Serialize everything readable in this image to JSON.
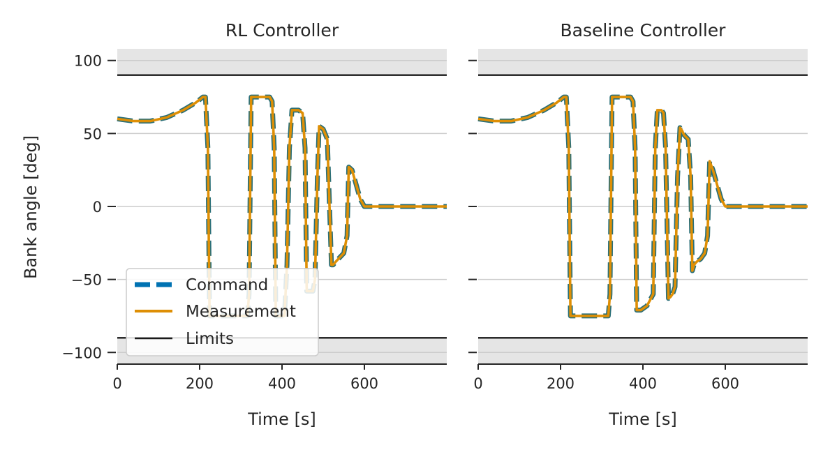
{
  "chart_data": [
    {
      "type": "line",
      "title": "RL Controller",
      "xlabel": "Time [s]",
      "ylabel": "Bank angle [deg]",
      "xlim": [
        0,
        800
      ],
      "ylim": [
        -108,
        108
      ],
      "xticks": [
        0,
        200,
        400,
        600
      ],
      "xtick_labels": [
        "0",
        "200",
        "400",
        "600"
      ],
      "yticks": [
        100,
        50,
        0,
        -50,
        -100
      ],
      "ytick_labels": [
        "100",
        "50",
        "0",
        "−50",
        "−100"
      ],
      "grid": "horizontal",
      "limits": [
        90,
        -90
      ],
      "forbidden_bands": [
        [
          90,
          108
        ],
        [
          -108,
          -90
        ]
      ],
      "legend": {
        "placement": "lower-left",
        "entries": [
          "Command",
          "Measurement",
          "Limits"
        ]
      },
      "series": [
        {
          "name": "Command",
          "style": "dashed",
          "x": [
            0,
            40,
            80,
            120,
            160,
            190,
            208,
            214,
            220,
            224,
            300,
            310,
            316,
            320,
            325,
            360,
            370,
            376,
            381,
            385,
            395,
            400,
            406,
            412,
            418,
            424,
            440,
            450,
            456,
            460,
            470,
            475,
            480,
            486,
            490,
            500,
            510,
            520,
            524,
            530,
            540,
            550,
            558,
            562,
            570,
            580,
            590,
            600,
            620,
            650,
            700,
            750,
            800
          ],
          "y": [
            60,
            58.5,
            58.5,
            61,
            66,
            71,
            75,
            75,
            40,
            -75,
            -75,
            -75,
            -75,
            -60,
            75,
            75,
            75,
            72,
            40,
            -75,
            -75,
            -75,
            -75,
            -40,
            40,
            66,
            66,
            64,
            40,
            -58,
            -58,
            -58,
            -50,
            20,
            55,
            53,
            46,
            -40,
            -40,
            -38,
            -35,
            -32,
            -20,
            27,
            25,
            15,
            5,
            0,
            0,
            0,
            0,
            0,
            0
          ]
        },
        {
          "name": "Measurement",
          "style": "solid",
          "x": [
            0,
            40,
            80,
            120,
            160,
            190,
            208,
            214,
            220,
            224,
            300,
            310,
            316,
            320,
            325,
            360,
            370,
            376,
            381,
            385,
            395,
            400,
            406,
            412,
            418,
            424,
            440,
            450,
            456,
            460,
            470,
            475,
            480,
            486,
            490,
            500,
            510,
            520,
            524,
            530,
            540,
            550,
            558,
            562,
            570,
            580,
            590,
            600,
            620,
            650,
            700,
            750,
            800
          ],
          "y": [
            60,
            58.5,
            58.5,
            61,
            66,
            71,
            75,
            75,
            40,
            -75,
            -75,
            -75,
            -75,
            -60,
            75,
            75,
            75,
            72,
            40,
            -75,
            -75,
            -75,
            -75,
            -40,
            40,
            66,
            66,
            64,
            40,
            -58,
            -58,
            -58,
            -50,
            20,
            55,
            53,
            46,
            -40,
            -40,
            -38,
            -35,
            -32,
            -20,
            27,
            25,
            15,
            5,
            0,
            0,
            0,
            0,
            0,
            0
          ]
        }
      ]
    },
    {
      "type": "line",
      "title": "Baseline Controller",
      "xlabel": "Time [s]",
      "ylabel": "",
      "xlim": [
        0,
        800
      ],
      "ylim": [
        -108,
        108
      ],
      "xticks": [
        0,
        200,
        400,
        600
      ],
      "xtick_labels": [
        "0",
        "200",
        "400",
        "600"
      ],
      "yticks": [
        100,
        50,
        0,
        -50,
        -100
      ],
      "ytick_labels": [
        "",
        "",
        "",
        "",
        ""
      ],
      "grid": "horizontal",
      "limits": [
        90,
        -90
      ],
      "forbidden_bands": [
        [
          90,
          108
        ],
        [
          -108,
          -90
        ]
      ],
      "series": [
        {
          "name": "Command",
          "style": "dashed",
          "x": [
            0,
            40,
            80,
            120,
            160,
            190,
            208,
            214,
            220,
            224,
            300,
            310,
            316,
            320,
            325,
            360,
            370,
            376,
            381,
            385,
            395,
            400,
            410,
            425,
            430,
            435,
            445,
            450,
            455,
            462,
            467,
            472,
            478,
            484,
            490,
            495,
            500,
            510,
            516,
            520,
            524,
            530,
            540,
            550,
            557,
            562,
            570,
            580,
            590,
            600,
            620,
            650,
            700,
            750,
            800
          ],
          "y": [
            60,
            58.5,
            58.5,
            61,
            66,
            71,
            75,
            75,
            40,
            -75,
            -75,
            -75,
            -75,
            -60,
            75,
            75,
            75,
            72,
            40,
            -71,
            -71,
            -70,
            -68,
            -60,
            40,
            66,
            66,
            64,
            40,
            -63,
            -62,
            -60,
            -55,
            20,
            54,
            52,
            49,
            46,
            20,
            -44,
            -40,
            -38,
            -36,
            -32,
            -20,
            31,
            25,
            15,
            5,
            0,
            0,
            0,
            0,
            0,
            0
          ]
        },
        {
          "name": "Measurement",
          "style": "solid",
          "x": [
            0,
            40,
            80,
            120,
            160,
            190,
            208,
            214,
            220,
            224,
            300,
            310,
            316,
            320,
            325,
            360,
            370,
            376,
            381,
            385,
            395,
            400,
            410,
            425,
            430,
            435,
            445,
            450,
            455,
            462,
            467,
            472,
            478,
            484,
            490,
            495,
            500,
            510,
            516,
            520,
            524,
            530,
            540,
            550,
            557,
            562,
            570,
            580,
            590,
            600,
            620,
            650,
            700,
            750,
            800
          ],
          "y": [
            60,
            58.5,
            58.5,
            61,
            66,
            71,
            75,
            75,
            40,
            -75,
            -75,
            -75,
            -75,
            -60,
            75,
            75,
            75,
            72,
            40,
            -71,
            -71,
            -70,
            -68,
            -60,
            40,
            66,
            66,
            64,
            40,
            -63,
            -62,
            -60,
            -55,
            20,
            54,
            52,
            49,
            46,
            20,
            -44,
            -40,
            -38,
            -36,
            -32,
            -20,
            31,
            25,
            15,
            5,
            0,
            0,
            0,
            0,
            0,
            0
          ]
        }
      ]
    }
  ],
  "colors": {
    "command": "#0072b2",
    "command_edge": "#2a6f78",
    "measurement": "#de8f05",
    "limits": "#1a1a1a",
    "band": "#e5e5e5",
    "grid": "#cccccc"
  }
}
